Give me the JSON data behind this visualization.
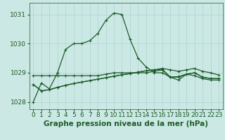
{
  "title": "Graphe pression niveau de la mer (hPa)",
  "background_color": "#cce8e4",
  "grid_color": "#aad4d0",
  "line_color": "#1a5c28",
  "xlim": [
    -0.5,
    23.5
  ],
  "ylim": [
    1027.75,
    1031.4
  ],
  "yticks": [
    1028,
    1029,
    1030,
    1031
  ],
  "xticks": [
    0,
    1,
    2,
    3,
    4,
    5,
    6,
    7,
    8,
    9,
    10,
    11,
    12,
    13,
    14,
    15,
    16,
    17,
    18,
    19,
    20,
    21,
    22,
    23
  ],
  "series1": [
    1028.0,
    1028.65,
    1028.45,
    1029.0,
    1029.8,
    1030.0,
    1030.0,
    1030.1,
    1030.35,
    1030.8,
    1031.05,
    1031.0,
    1030.15,
    1029.5,
    1029.2,
    1029.0,
    1029.0,
    1028.85,
    1028.75,
    1028.95,
    1028.9,
    1028.8,
    1028.75,
    1028.75
  ],
  "series2": [
    1028.9,
    1028.9,
    1028.9,
    1028.9,
    1028.9,
    1028.9,
    1028.9,
    1028.9,
    1028.9,
    1028.95,
    1029.0,
    1029.0,
    1029.0,
    1029.0,
    1029.0,
    1029.05,
    1029.1,
    1028.85,
    1028.85,
    1028.95,
    1029.0,
    1028.85,
    1028.8,
    1028.8
  ],
  "series3": [
    1028.6,
    1028.38,
    1028.42,
    1028.5,
    1028.57,
    1028.63,
    1028.68,
    1028.73,
    1028.78,
    1028.83,
    1028.88,
    1028.93,
    1028.97,
    1029.02,
    1029.07,
    1029.1,
    1029.12,
    1028.85,
    1028.87,
    1028.95,
    1029.0,
    1028.85,
    1028.8,
    1028.8
  ],
  "series4": [
    1028.6,
    1028.38,
    1028.42,
    1028.5,
    1028.57,
    1028.63,
    1028.68,
    1028.73,
    1028.78,
    1028.83,
    1028.88,
    1028.93,
    1028.97,
    1029.02,
    1029.07,
    1029.1,
    1029.15,
    1029.1,
    1029.05,
    1029.1,
    1029.15,
    1029.05,
    1029.0,
    1028.92
  ],
  "xlabel_fontsize": 6.5,
  "ylabel_fontsize": 6.5,
  "title_fontsize": 7.5
}
